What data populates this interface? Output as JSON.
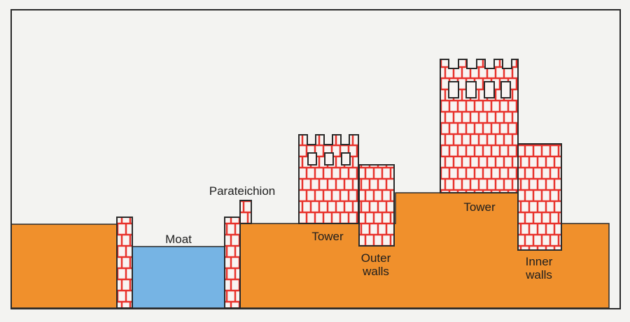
{
  "labels": {
    "moat": "Moat",
    "parateichion": "Parateichion",
    "tower_outer": "Tower",
    "outer_walls_1": "Outer",
    "outer_walls_2": "walls",
    "tower_inner": "Tower",
    "inner_walls_1": "Inner",
    "inner_walls_2": "walls"
  },
  "colors": {
    "ground": "#f0902c",
    "moat": "#76b4e4",
    "brick_mortar": "#e8322c",
    "brick_fill": "#f8f4f2",
    "outline": "#2a2a2a",
    "background": "#f3f3f1"
  }
}
